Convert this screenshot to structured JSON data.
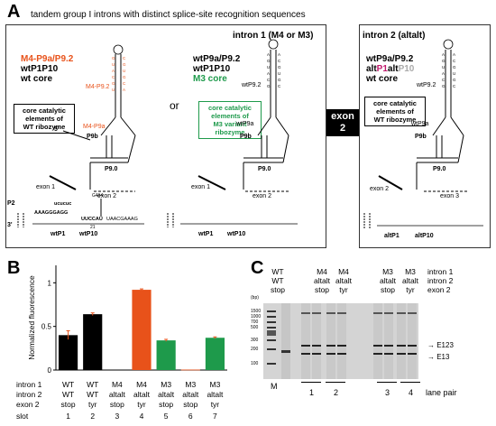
{
  "panel_a": {
    "label": "A",
    "title": "tandem group I introns with distinct splice-site recognition sequences",
    "intron1_header": "intron 1 (M4 or M3)",
    "intron2_header": "intron 2 (altalt)",
    "exon2_tag": [
      "exon",
      "2"
    ],
    "or_text": "or",
    "left": {
      "line1": "M4-P9a/P9.2",
      "line2": "wtP1P10",
      "line3": "wt core",
      "core_box": [
        "core catalytic",
        "elements of",
        "WT ribozyme"
      ],
      "m4p92": "M4-P9.2",
      "m4p9a": "M4-P9a",
      "p9b": "P9b",
      "p90": "P9.0",
      "five": "5'",
      "exon1": "exon 1",
      "exon2": "exon 2",
      "p2": "P2",
      "three": "3'",
      "g414": "G414",
      "wtp1": "wtP1",
      "wtp10": "wtP10",
      "n21": "21",
      "seq_top": "ucucuc",
      "seq_top2": "AAAGGGAGG",
      "seq_mid": "UUCCAU",
      "seq_right": "UAACGAAAG"
    },
    "mid": {
      "line1": "wtP9a/P9.2",
      "line2": "wtP1P10",
      "line3": "M3 core",
      "core_box": [
        "core catalytic",
        "elements of",
        "M3 variant",
        "ribozyme"
      ],
      "p92": "wtP9.2",
      "p9a": "wtP9a",
      "p9b": "P9b",
      "p90": "P9.0",
      "exon1": "exon 1",
      "exon2": "exon 2",
      "wtp1": "wtP1",
      "wtp10": "wtP10"
    },
    "right": {
      "line1": "wtP9a/P9.2",
      "line2_a": "alt",
      "line2_b": "P1",
      "line2_c": "alt",
      "line2_d": "P10",
      "line3": "wt core",
      "core_box": [
        "core catalytic",
        "elements of",
        "WT ribozyme"
      ],
      "p92": "wtP9.2",
      "p9a": "wtP9a",
      "p9b": "P9b",
      "p90": "P9.0",
      "exon2": "exon 2",
      "exon3": "exon 3",
      "altp1": "altP1",
      "altp10": "altP10"
    }
  },
  "panel_b": {
    "label": "B",
    "chart_data": {
      "type": "bar",
      "ylabel": "Normalized fluorescence",
      "ylim": [
        0,
        1.2
      ],
      "yticks": [
        "0",
        "0.5",
        "1"
      ],
      "slots": [
        "1",
        "2",
        "3",
        "4",
        "5",
        "6",
        "7"
      ],
      "values": [
        0.4,
        0.64,
        0.005,
        0.92,
        0.34,
        0.005,
        0.37
      ],
      "errors": [
        0.05,
        0.015,
        0.002,
        0.01,
        0.012,
        0.002,
        0.01
      ],
      "colors": [
        "#000000",
        "#000000",
        "#000000",
        "#e8521a",
        "#1e9a4b",
        "#e8521a",
        "#1e9a4b"
      ],
      "row_labels": [
        "intron 1",
        "intron 2",
        "exon 2",
        "slot"
      ],
      "intron1": [
        "WT",
        "WT",
        "M4",
        "M4",
        "M3",
        "M3",
        "M3"
      ],
      "intron2": [
        "WT",
        "WT",
        "altalt",
        "altalt",
        "altalt",
        "altalt",
        "altalt"
      ],
      "exon2": [
        "stop",
        "tyr",
        "stop",
        "tyr",
        "stop",
        "stop",
        "tyr"
      ]
    }
  },
  "panel_c": {
    "label": "C",
    "bp_label": "(bp)",
    "ladder": [
      "1500",
      "1000",
      "700",
      "500",
      "300",
      "200",
      "100"
    ],
    "lane_m": "M",
    "groups": [
      {
        "intron1": "WT",
        "intron2": "WT",
        "exon2": "stop"
      },
      {
        "intron1": "M4",
        "intron2": "altalt",
        "exon2": "stop"
      },
      {
        "intron1": "M4",
        "intron2": "altalt",
        "exon2": "tyr"
      },
      {
        "intron1": "M3",
        "intron2": "altalt",
        "exon2": "stop"
      },
      {
        "intron1": "M3",
        "intron2": "altalt",
        "exon2": "tyr"
      }
    ],
    "row_labels": [
      "intron 1",
      "intron 2",
      "exon 2"
    ],
    "bands": [
      "E123",
      "E13"
    ],
    "lane_pairs": [
      "1",
      "2",
      "3",
      "4"
    ],
    "lane_pair_label": "lane pair"
  }
}
